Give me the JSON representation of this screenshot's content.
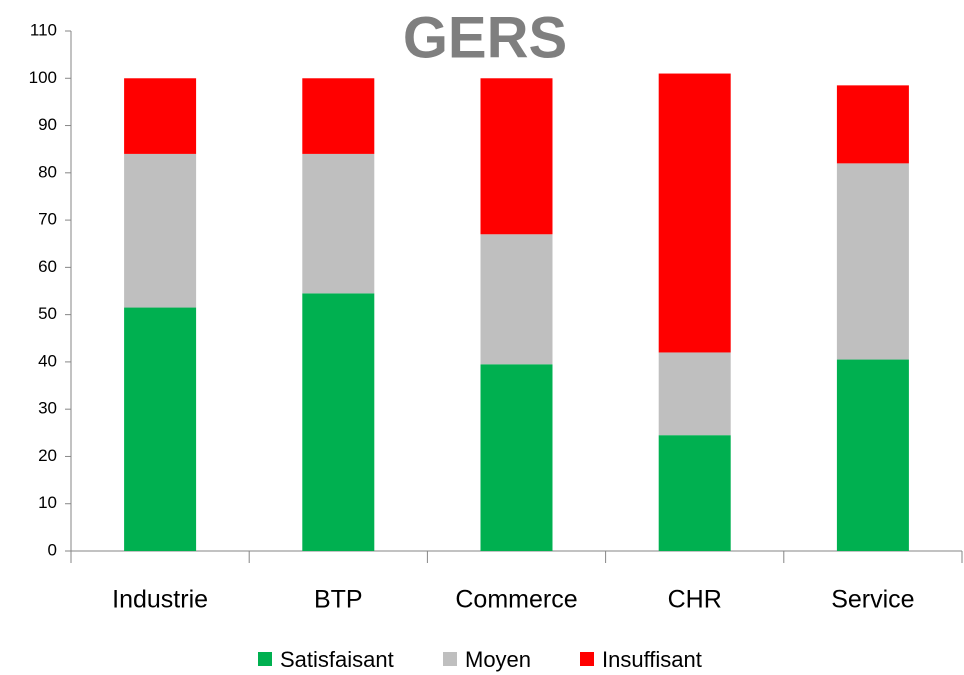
{
  "chart_data": {
    "type": "stacked_bar",
    "title": "GERS",
    "categories": [
      "Industrie",
      "BTP",
      "Commerce",
      "CHR",
      "Service"
    ],
    "series": [
      {
        "name": "Satisfaisant",
        "color": "#00b050",
        "values": [
          51.5,
          54.5,
          39.5,
          24.5,
          40.5
        ]
      },
      {
        "name": "Moyen",
        "color": "#bfbfbf",
        "values": [
          32.5,
          29.5,
          27.5,
          17.5,
          41.5
        ]
      },
      {
        "name": "Insuffisant",
        "color": "#ff0000",
        "values": [
          16,
          16,
          33,
          59,
          16.5
        ]
      }
    ],
    "ylim": [
      0,
      110
    ],
    "yticks": [
      0,
      10,
      20,
      30,
      40,
      50,
      60,
      70,
      80,
      90,
      100,
      110
    ],
    "legend": "bottom"
  }
}
